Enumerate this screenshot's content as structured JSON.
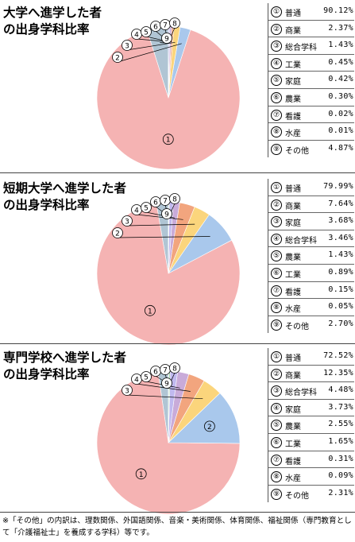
{
  "footnote": "※「その他」の内訳は、理数関係、外国語関係、音楽・美術関係、体育関係、福祉関係（専門教育として「介護福祉士」を養成する学科）等です。",
  "chart_data": [
    {
      "type": "pie",
      "title": "大学へ進学した者\nの出身学科比率",
      "slices": [
        {
          "num": "①",
          "label": "普通",
          "value": 90.12,
          "display": "90.12%",
          "color": "#f5b3b3"
        },
        {
          "num": "②",
          "label": "商業",
          "value": 2.37,
          "display": "2.37%",
          "color": "#a9c8ec"
        },
        {
          "num": "③",
          "label": "総合学科",
          "value": 1.43,
          "display": "1.43%",
          "color": "#fbd57c"
        },
        {
          "num": "④",
          "label": "工業",
          "value": 0.45,
          "display": "0.45%",
          "color": "#f2a57e"
        },
        {
          "num": "⑤",
          "label": "家庭",
          "value": 0.42,
          "display": "0.42%",
          "color": "#c9abd9"
        },
        {
          "num": "⑥",
          "label": "農業",
          "value": 0.3,
          "display": "0.30%",
          "color": "#c0b9ef"
        },
        {
          "num": "⑦",
          "label": "看護",
          "value": 0.02,
          "display": "0.02%",
          "color": "#9fd7a9"
        },
        {
          "num": "⑧",
          "label": "水産",
          "value": 0.01,
          "display": "0.01%",
          "color": "#58b36a"
        },
        {
          "num": "⑨",
          "label": "その他",
          "value": 4.87,
          "display": "4.87%",
          "color": "#b0c5d4"
        }
      ]
    },
    {
      "type": "pie",
      "title": "短期大学へ進学した者\nの出身学科比率",
      "slices": [
        {
          "num": "①",
          "label": "普通",
          "value": 79.99,
          "display": "79.99%",
          "color": "#f5b3b3"
        },
        {
          "num": "②",
          "label": "商業",
          "value": 7.64,
          "display": "7.64%",
          "color": "#a9c8ec"
        },
        {
          "num": "③",
          "label": "家庭",
          "value": 3.68,
          "display": "3.68%",
          "color": "#fbd57c"
        },
        {
          "num": "④",
          "label": "総合学科",
          "value": 3.46,
          "display": "3.46%",
          "color": "#f2a57e"
        },
        {
          "num": "⑤",
          "label": "農業",
          "value": 1.43,
          "display": "1.43%",
          "color": "#c9abd9"
        },
        {
          "num": "⑥",
          "label": "工業",
          "value": 0.89,
          "display": "0.89%",
          "color": "#c0b9ef"
        },
        {
          "num": "⑦",
          "label": "看護",
          "value": 0.15,
          "display": "0.15%",
          "color": "#9fd7a9"
        },
        {
          "num": "⑧",
          "label": "水産",
          "value": 0.05,
          "display": "0.05%",
          "color": "#58b36a"
        },
        {
          "num": "⑨",
          "label": "その他",
          "value": 2.7,
          "display": "2.70%",
          "color": "#b0c5d4"
        }
      ]
    },
    {
      "type": "pie",
      "title": "専門学校へ進学した者\nの出身学科比率",
      "slices": [
        {
          "num": "①",
          "label": "普通",
          "value": 72.52,
          "display": "72.52%",
          "color": "#f5b3b3"
        },
        {
          "num": "②",
          "label": "商業",
          "value": 12.35,
          "display": "12.35%",
          "color": "#a9c8ec"
        },
        {
          "num": "③",
          "label": "総合学科",
          "value": 4.48,
          "display": "4.48%",
          "color": "#fbd57c"
        },
        {
          "num": "④",
          "label": "家庭",
          "value": 3.73,
          "display": "3.73%",
          "color": "#f2a57e"
        },
        {
          "num": "⑤",
          "label": "農業",
          "value": 2.55,
          "display": "2.55%",
          "color": "#c9abd9"
        },
        {
          "num": "⑥",
          "label": "工業",
          "value": 1.65,
          "display": "1.65%",
          "color": "#c0b9ef"
        },
        {
          "num": "⑦",
          "label": "看護",
          "value": 0.31,
          "display": "0.31%",
          "color": "#9fd7a9"
        },
        {
          "num": "⑧",
          "label": "水産",
          "value": 0.09,
          "display": "0.09%",
          "color": "#58b36a"
        },
        {
          "num": "⑨",
          "label": "その他",
          "value": 2.31,
          "display": "2.31%",
          "color": "#b0c5d4"
        }
      ]
    }
  ]
}
